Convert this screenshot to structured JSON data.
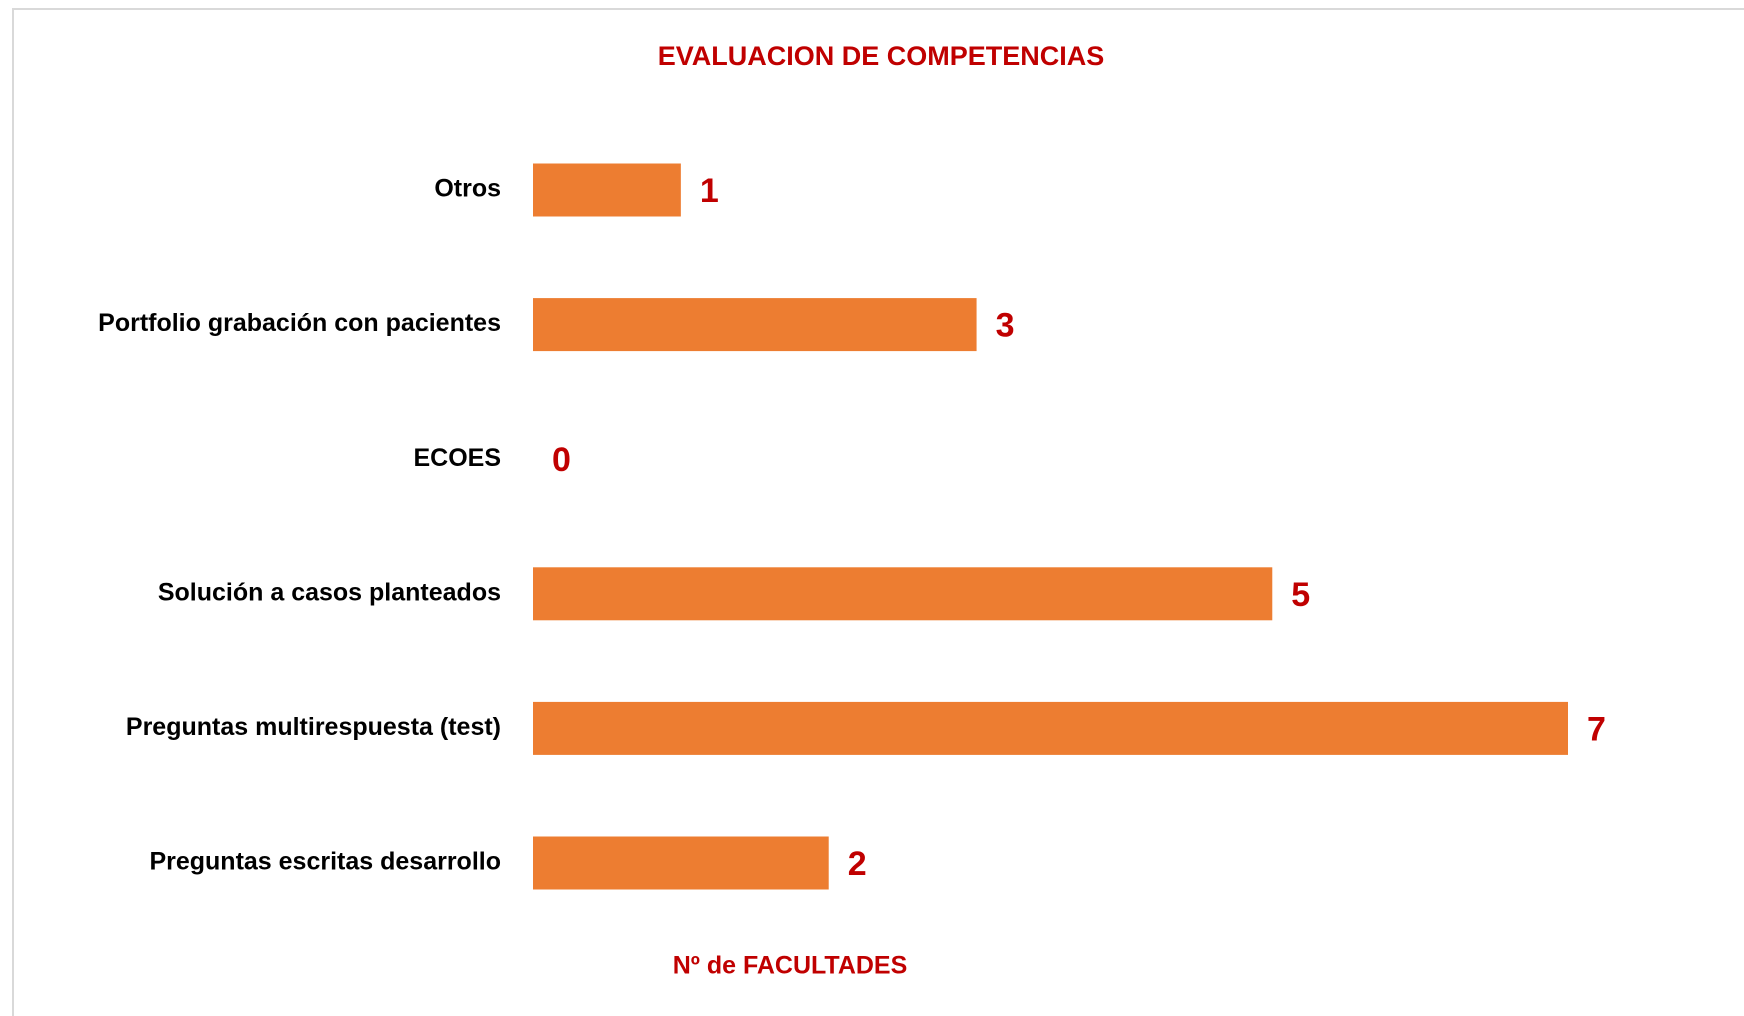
{
  "chart_data": {
    "type": "bar",
    "orientation": "horizontal",
    "title": "EVALUACION  DE  COMPETENCIAS",
    "x_label": "Nº de FACULTADES",
    "categories": [
      "Otros",
      "Portfolio grabación con pacientes",
      "ECOES",
      "Solución a casos planteados",
      "Preguntas multirespuesta (test)",
      "Preguntas escritas desarrollo"
    ],
    "values": [
      1,
      3,
      0,
      5,
      7,
      2
    ],
    "color": "#ed7d31",
    "value_label_color": "#c00000",
    "grid": false
  }
}
